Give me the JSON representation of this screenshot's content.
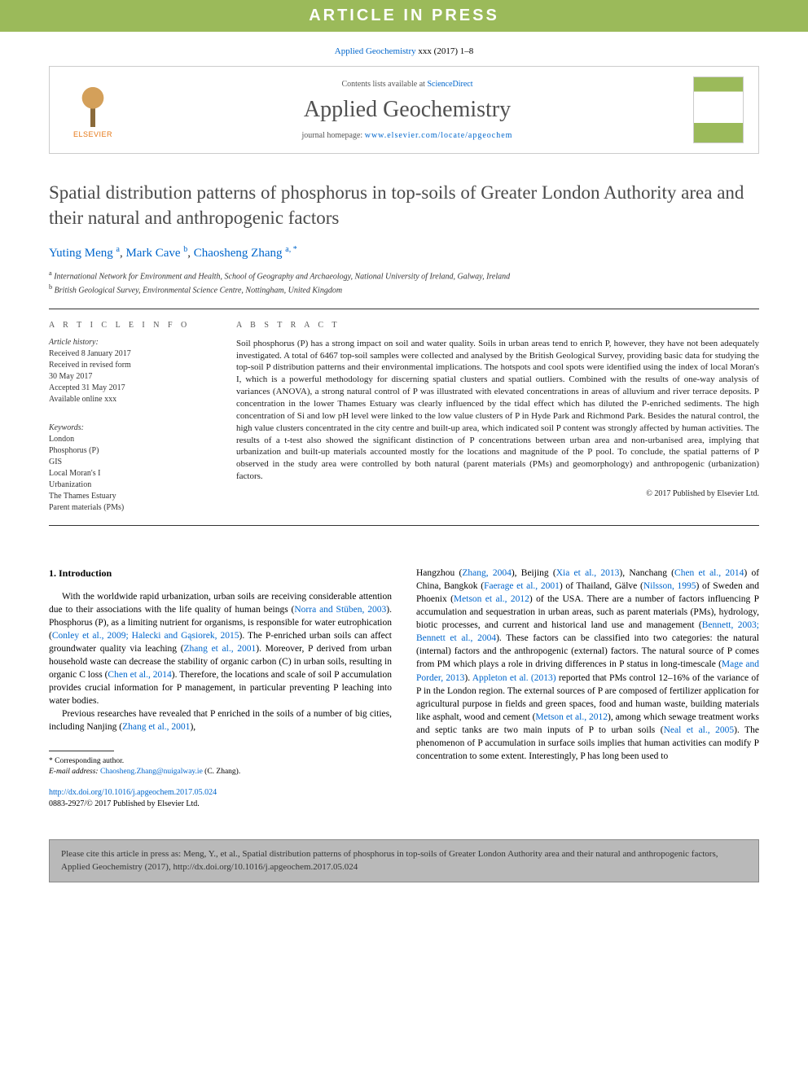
{
  "banner": {
    "text": "ARTICLE IN PRESS"
  },
  "header_citation": {
    "journal_link": "Applied Geochemistry",
    "suffix": " xxx (2017) 1–8"
  },
  "journal_box": {
    "elsevier_label": "ELSEVIER",
    "contents_prefix": "Contents lists available at ",
    "contents_link": "ScienceDirect",
    "journal_name": "Applied Geochemistry",
    "homepage_prefix": "journal homepage: ",
    "homepage_link": "www.elsevier.com/locate/apgeochem"
  },
  "title": "Spatial distribution patterns of phosphorus in top-soils of Greater London Authority area and their natural and anthropogenic factors",
  "authors_html": {
    "a1_name": "Yuting Meng",
    "a1_sup": "a",
    "a2_name": "Mark Cave",
    "a2_sup": "b",
    "a3_name": "Chaosheng Zhang",
    "a3_sup": "a, *"
  },
  "affiliations": {
    "a": "International Network for Environment and Health, School of Geography and Archaeology, National University of Ireland, Galway, Ireland",
    "b": "British Geological Survey, Environmental Science Centre, Nottingham, United Kingdom"
  },
  "article_info": {
    "heading": "A R T I C L E  I N F O",
    "history_label": "Article history:",
    "received": "Received 8 January 2017",
    "revised1": "Received in revised form",
    "revised2": "30 May 2017",
    "accepted": "Accepted 31 May 2017",
    "online": "Available online xxx",
    "keywords_label": "Keywords:",
    "keywords": [
      "London",
      "Phosphorus (P)",
      "GIS",
      "Local Moran's I",
      "Urbanization",
      "The Thames Estuary",
      "Parent materials (PMs)"
    ]
  },
  "abstract": {
    "heading": "A B S T R A C T",
    "text": "Soil phosphorus (P) has a strong impact on soil and water quality. Soils in urban areas tend to enrich P, however, they have not been adequately investigated. A total of 6467 top-soil samples were collected and analysed by the British Geological Survey, providing basic data for studying the top-soil P distribution patterns and their environmental implications. The hotspots and cool spots were identified using the index of local Moran's I, which is a powerful methodology for discerning spatial clusters and spatial outliers. Combined with the results of one-way analysis of variances (ANOVA), a strong natural control of P was illustrated with elevated concentrations in areas of alluvium and river terrace deposits. P concentration in the lower Thames Estuary was clearly influenced by the tidal effect which has diluted the P-enriched sediments. The high concentration of Si and low pH level were linked to the low value clusters of P in Hyde Park and Richmond Park. Besides the natural control, the high value clusters concentrated in the city centre and built-up area, which indicated soil P content was strongly affected by human activities. The results of a t-test also showed the significant distinction of P concentrations between urban area and non-urbanised area, implying that urbanization and built-up materials accounted mostly for the locations and magnitude of the P pool. To conclude, the spatial patterns of P observed in the study area were controlled by both natural (parent materials (PMs) and geomorphology) and anthropogenic (urbanization) factors.",
    "copyright": "© 2017 Published by Elsevier Ltd."
  },
  "body": {
    "section_heading": "1. Introduction",
    "col1_p1_a": "With the worldwide rapid urbanization, urban soils are receiving considerable attention due to their associations with the life quality of human beings (",
    "col1_p1_link1": "Norra and Stüben, 2003",
    "col1_p1_b": "). Phosphorus (P), as a limiting nutrient for organisms, is responsible for water eutrophication (",
    "col1_p1_link2": "Conley et al., 2009; Halecki and Gąsiorek, 2015",
    "col1_p1_c": "). The P-enriched urban soils can affect groundwater quality via leaching (",
    "col1_p1_link3": "Zhang et al., 2001",
    "col1_p1_d": "). Moreover, P derived from urban household waste can decrease the stability of organic carbon (C) in urban soils, resulting in organic C loss (",
    "col1_p1_link4": "Chen et al., 2014",
    "col1_p1_e": "). Therefore, the locations and scale of soil P accumulation provides crucial information for P management, in particular preventing P leaching into water bodies.",
    "col1_p2_a": "Previous researches have revealed that P enriched in the soils of a number of big cities, including Nanjing (",
    "col1_p2_link1": "Zhang et al., 2001",
    "col1_p2_b": "),",
    "col2_p1_a": "Hangzhou (",
    "col2_link1": "Zhang, 2004",
    "col2_p1_b": "), Beijing (",
    "col2_link2": "Xia et al., 2013",
    "col2_p1_c": "), Nanchang (",
    "col2_link3": "Chen et al., 2014",
    "col2_p1_d": ") of China, Bangkok (",
    "col2_link4": "Faerage et al., 2001",
    "col2_p1_e": ") of Thailand, Gälve (",
    "col2_link5": "Nilsson, 1995",
    "col2_p1_f": ") of Sweden and Phoenix (",
    "col2_link6": "Metson et al., 2012",
    "col2_p1_g": ") of the USA. There are a number of factors influencing P accumulation and sequestration in urban areas, such as parent materials (PMs), hydrology, biotic processes, and current and historical land use and management (",
    "col2_link7": "Bennett, 2003; Bennett et al., 2004",
    "col2_p1_h": "). These factors can be classified into two categories: the natural (internal) factors and the anthropogenic (external) factors. The natural source of P comes from PM which plays a role in driving differences in P status in long-timescale (",
    "col2_link8": "Mage and Porder, 2013",
    "col2_p1_i": "). ",
    "col2_link9": "Appleton et al. (2013)",
    "col2_p1_j": " reported that PMs control 12–16% of the variance of P in the London region. The external sources of P are composed of fertilizer application for agricultural purpose in fields and green spaces, food and human waste, building materials like asphalt, wood and cement (",
    "col2_link10": "Metson et al., 2012",
    "col2_p1_k": "), among which sewage treatment works and septic tanks are two main inputs of P to urban soils (",
    "col2_link11": "Neal et al., 2005",
    "col2_p1_l": "). The phenomenon of P accumulation in surface soils implies that human activities can modify P concentration to some extent. Interestingly, P has long been used to"
  },
  "footnotes": {
    "corresponding": "* Corresponding author.",
    "email_label": "E-mail address: ",
    "email": "Chaosheng.Zhang@nuigalway.ie",
    "email_suffix": " (C. Zhang)."
  },
  "doi": {
    "link": "http://dx.doi.org/10.1016/j.apgeochem.2017.05.024",
    "issn": "0883-2927/© 2017 Published by Elsevier Ltd."
  },
  "cite_footer": "Please cite this article in press as: Meng, Y., et al., Spatial distribution patterns of phosphorus in top-soils of Greater London Authority area and their natural and anthropogenic factors, Applied Geochemistry (2017), http://dx.doi.org/10.1016/j.apgeochem.2017.05.024",
  "colors": {
    "banner_bg": "#9bba5a",
    "link": "#0066cc",
    "elsevier_orange": "#e67817",
    "footer_bg": "#b9b9b9"
  }
}
